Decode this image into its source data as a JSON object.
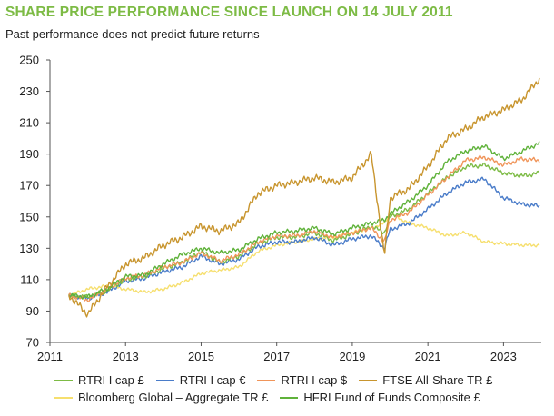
{
  "header": {
    "title": "SHARE PRICE PERFORMANCE SINCE LAUNCH ON 14 JULY 2011",
    "subtitle": "Past performance does not predict future returns"
  },
  "chart_data": {
    "type": "line",
    "title": "SHARE PRICE PERFORMANCE SINCE LAUNCH ON 14 JULY 2011",
    "subtitle": "Past performance does not predict future returns",
    "xlabel": "",
    "ylabel": "",
    "xlim": [
      2011,
      2024
    ],
    "ylim": [
      70,
      250
    ],
    "x_ticks": [
      "2011",
      "2013",
      "2015",
      "2017",
      "2019",
      "2021",
      "2023"
    ],
    "y_ticks": [
      "70",
      "90",
      "110",
      "130",
      "150",
      "170",
      "190",
      "210",
      "230",
      "250"
    ],
    "grid": false,
    "legend_position": "bottom",
    "x": [
      2011.5,
      2012.0,
      2012.5,
      2013.0,
      2013.5,
      2014.0,
      2014.5,
      2015.0,
      2015.5,
      2016.0,
      2016.5,
      2017.0,
      2017.5,
      2018.0,
      2018.5,
      2019.0,
      2019.5,
      2019.85,
      2020.0,
      2020.5,
      2021.0,
      2021.5,
      2022.0,
      2022.5,
      2023.0,
      2023.5,
      2023.95
    ],
    "series": [
      {
        "name": "RTRI I cap £",
        "color": "#7dbb45",
        "values": [
          100,
          99,
          103,
          110,
          112,
          117,
          121,
          128,
          121,
          125,
          133,
          137,
          137,
          140,
          135,
          139,
          144,
          140,
          150,
          155,
          165,
          175,
          182,
          183,
          178,
          176,
          178
        ]
      },
      {
        "name": "RTRI I cap €",
        "color": "#4a7cc9",
        "values": [
          100,
          98,
          102,
          109,
          111,
          115,
          118,
          125,
          120,
          123,
          131,
          134,
          134,
          137,
          132,
          136,
          138,
          130,
          142,
          146,
          155,
          165,
          172,
          174,
          162,
          158,
          157
        ]
      },
      {
        "name": "RTRI I cap $",
        "color": "#f0955a",
        "values": [
          100,
          97,
          104,
          111,
          113,
          118,
          121,
          127,
          122,
          126,
          134,
          138,
          138,
          141,
          137,
          140,
          143,
          134,
          148,
          153,
          164,
          175,
          186,
          188,
          183,
          187,
          186
        ]
      },
      {
        "name": "FTSE All-Share TR £",
        "color": "#c8952e",
        "values": [
          100,
          88,
          105,
          120,
          124,
          132,
          137,
          144,
          141,
          146,
          165,
          170,
          172,
          175,
          172,
          175,
          190,
          125,
          162,
          168,
          182,
          200,
          206,
          214,
          218,
          225,
          238
        ]
      },
      {
        "name": "Bloomberg Global – Aggregate TR £",
        "color": "#f6df6e",
        "values": [
          100,
          104,
          106,
          104,
          102,
          104,
          108,
          114,
          116,
          118,
          128,
          132,
          134,
          136,
          137,
          140,
          143,
          146,
          152,
          146,
          143,
          138,
          140,
          134,
          133,
          132,
          132
        ]
      },
      {
        "name": "HFRI Fund of Funds Composite £",
        "color": "#5fb23a",
        "values": [
          100,
          99,
          104,
          112,
          113,
          120,
          126,
          130,
          127,
          129,
          136,
          140,
          141,
          143,
          139,
          143,
          146,
          148,
          152,
          160,
          170,
          185,
          192,
          195,
          187,
          192,
          197
        ]
      }
    ]
  },
  "legend": {
    "row1": [
      {
        "label": "RTRI I cap £",
        "color": "#7dbb45"
      },
      {
        "label": "RTRI I cap €",
        "color": "#4a7cc9"
      },
      {
        "label": "RTRI I cap $",
        "color": "#f0955a"
      },
      {
        "label": "FTSE All-Share TR £",
        "color": "#c8952e"
      }
    ],
    "row2": [
      {
        "label": "Bloomberg Global – Aggregate TR £",
        "color": "#f6df6e"
      },
      {
        "label": "HFRI Fund of Funds Composite £",
        "color": "#5fb23a"
      }
    ]
  }
}
